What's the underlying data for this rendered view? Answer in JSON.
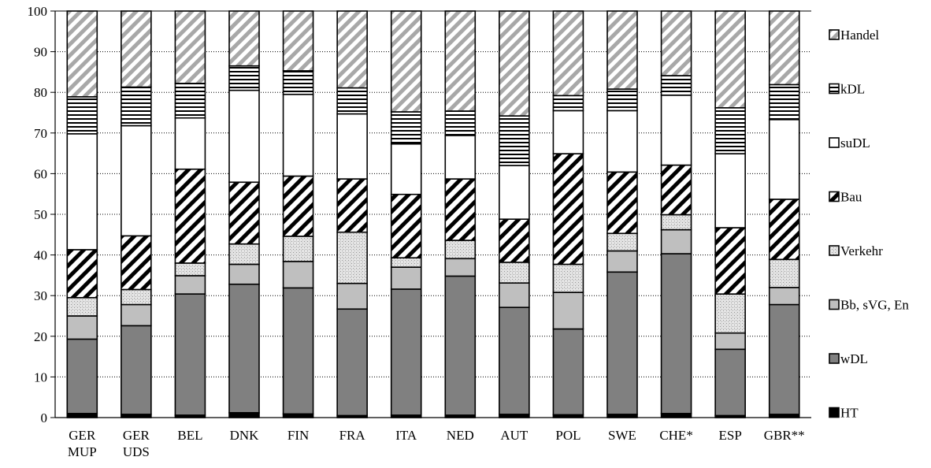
{
  "chart_data": {
    "type": "bar",
    "stacked": true,
    "title": "",
    "xlabel": "",
    "ylabel": "",
    "ylim": [
      0,
      100
    ],
    "yticks": [
      0,
      10,
      20,
      30,
      40,
      50,
      60,
      70,
      80,
      90,
      100
    ],
    "grid": "horizontal dotted",
    "legend_position": "right",
    "categories": [
      [
        "GER",
        "MUP"
      ],
      [
        "GER",
        "UDS"
      ],
      [
        "BEL"
      ],
      [
        "DNK"
      ],
      [
        "FIN"
      ],
      [
        "FRA"
      ],
      [
        "ITA"
      ],
      [
        "NED"
      ],
      [
        "AUT"
      ],
      [
        "POL"
      ],
      [
        "SWE"
      ],
      [
        "CHE*"
      ],
      [
        "ESP"
      ],
      [
        "GBR**"
      ]
    ],
    "series": [
      {
        "name": "HT",
        "pattern": "solid-black",
        "values": [
          1.0,
          0.8,
          0.6,
          1.2,
          0.9,
          0.5,
          0.6,
          0.6,
          0.8,
          0.7,
          0.8,
          1.0,
          0.5,
          0.8
        ]
      },
      {
        "name": "wDL",
        "pattern": "solid-darkgray",
        "values": [
          18.3,
          21.8,
          29.8,
          31.6,
          31.0,
          26.2,
          31.0,
          34.2,
          26.3,
          21.1,
          35.0,
          39.3,
          16.3,
          27.0
        ]
      },
      {
        "name": "Bb, sVG, En",
        "pattern": "solid-lightgray",
        "values": [
          5.7,
          5.2,
          4.5,
          4.9,
          6.5,
          6.3,
          5.4,
          4.3,
          6.0,
          9.0,
          5.2,
          5.9,
          4.0,
          4.2
        ]
      },
      {
        "name": "Verkehr",
        "pattern": "stipple",
        "values": [
          4.5,
          3.7,
          3.1,
          5.0,
          6.2,
          12.6,
          2.3,
          4.5,
          5.1,
          6.9,
          4.3,
          3.7,
          9.6,
          6.9
        ]
      },
      {
        "name": "Bau",
        "pattern": "diagonal-black",
        "values": [
          11.8,
          13.2,
          23.1,
          15.2,
          14.8,
          13.1,
          15.6,
          15.1,
          10.6,
          27.2,
          15.1,
          12.2,
          16.3,
          14.8
        ]
      },
      {
        "name": "suDL",
        "pattern": "white",
        "values": [
          28.5,
          27.1,
          12.6,
          22.6,
          20.1,
          16.0,
          12.4,
          10.7,
          13.2,
          10.6,
          15.1,
          17.2,
          18.2,
          19.6
        ]
      },
      {
        "name": "kDL",
        "pattern": "horizontal-lines",
        "values": [
          9.1,
          9.5,
          8.5,
          6.0,
          5.8,
          6.4,
          7.9,
          6.0,
          12.2,
          3.7,
          5.3,
          4.8,
          11.3,
          8.6
        ]
      },
      {
        "name": "Handel",
        "pattern": "diagonal-gray",
        "values": [
          21.1,
          18.7,
          17.8,
          13.5,
          14.7,
          18.9,
          24.8,
          24.6,
          25.8,
          20.8,
          19.2,
          15.9,
          23.8,
          18.1
        ]
      }
    ]
  }
}
